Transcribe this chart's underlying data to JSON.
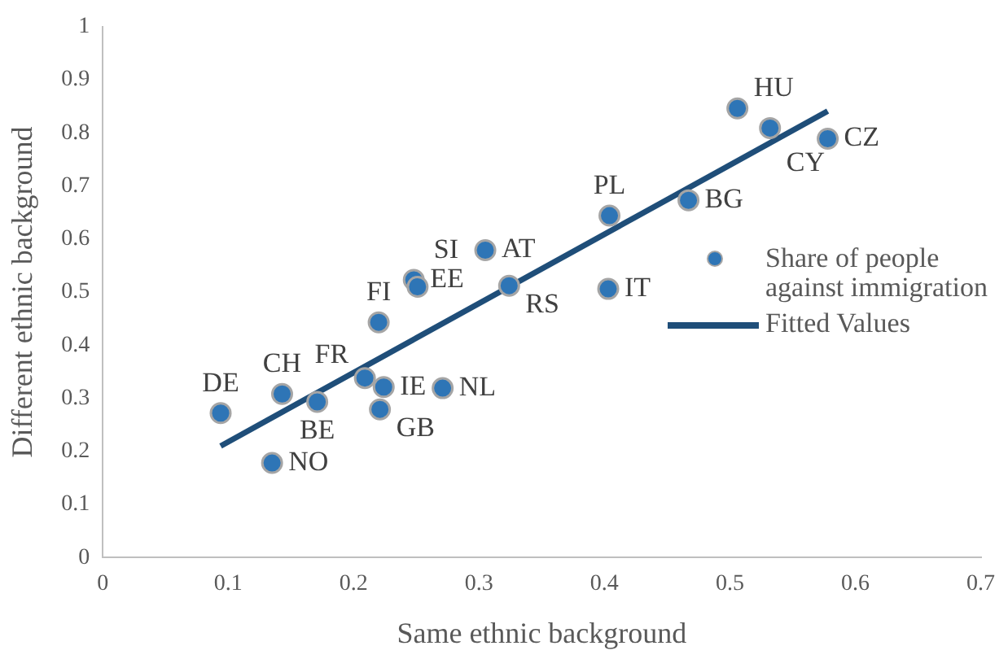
{
  "chart_data": {
    "type": "scatter",
    "xlabel": "Same ethnic background",
    "ylabel": "Different ethnic background",
    "xlim": [
      0,
      0.7
    ],
    "xticks": [
      0,
      0.1,
      0.2,
      0.3,
      0.4,
      0.5,
      0.6,
      0.7
    ],
    "ylim": [
      0,
      1
    ],
    "yticks": [
      0,
      0.1,
      0.2,
      0.3,
      0.4,
      0.5,
      0.6,
      0.7,
      0.8,
      0.9,
      1
    ],
    "grid": false,
    "legend": "right",
    "marker": "circle",
    "series": [
      {
        "name": "Share of people against immigration",
        "color": "#2e75b6",
        "x": [
          0.094,
          0.143,
          0.171,
          0.135,
          0.209,
          0.224,
          0.221,
          0.271,
          0.22,
          0.248,
          0.251,
          0.305,
          0.324,
          0.404,
          0.467,
          0.403,
          0.506,
          0.532,
          0.578
        ],
        "values": [
          0.272,
          0.308,
          0.293,
          0.178,
          0.338,
          0.321,
          0.279,
          0.319,
          0.443,
          0.523,
          0.51,
          0.579,
          0.512,
          0.644,
          0.673,
          0.506,
          0.846,
          0.809,
          0.789
        ],
        "value_labels": [
          "DE",
          "CH",
          "BE",
          "NO",
          "FR",
          "IE",
          "GB",
          "NL",
          "FI",
          "EE",
          "SI",
          "AT",
          "RS",
          "PL",
          "BG",
          "IT",
          "HU",
          "CY",
          "CZ"
        ]
      },
      {
        "name": "Fitted Values",
        "type": "line",
        "color": "#1f4e79",
        "marker": "none",
        "line_style": "solid",
        "x": [
          0.094,
          0.578
        ],
        "values": [
          0.21,
          0.841
        ]
      }
    ]
  }
}
